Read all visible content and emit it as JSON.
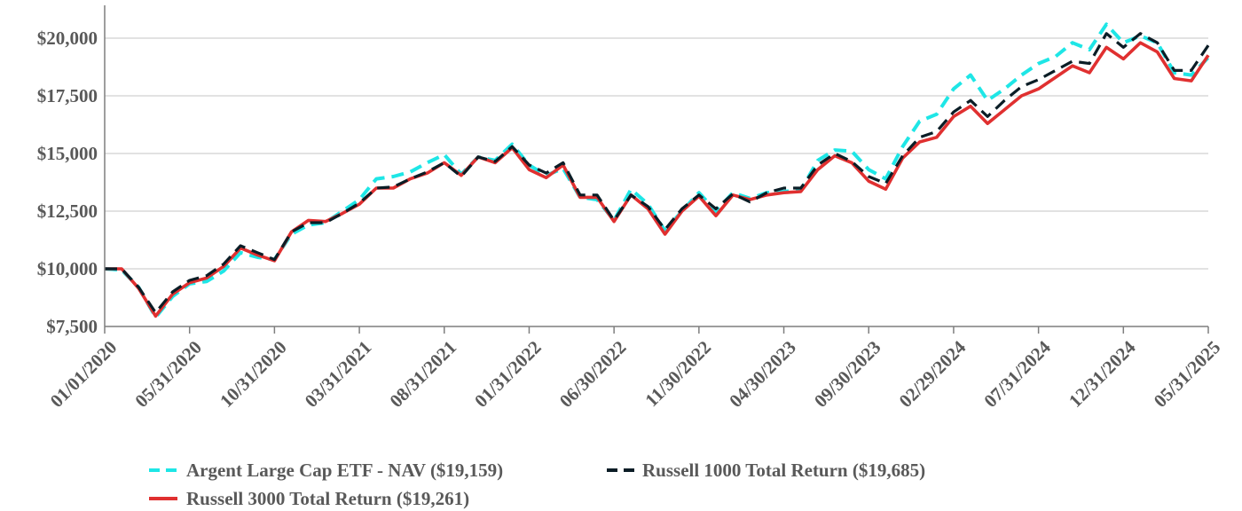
{
  "chart_data": {
    "type": "line",
    "title": "",
    "xlabel": "",
    "ylabel": "",
    "ylim": [
      7500,
      21500
    ],
    "y_ticks": [
      7500,
      10000,
      12500,
      15000,
      17500,
      20000
    ],
    "y_tick_labels": [
      "$7,500",
      "$10,000",
      "$12,500",
      "$15,000",
      "$17,500",
      "$20,000"
    ],
    "x_tick_labels": [
      "01/01/2020",
      "05/31/2020",
      "10/31/2020",
      "03/31/2021",
      "08/31/2021",
      "01/31/2022",
      "06/30/2022",
      "11/30/2022",
      "04/30/2023",
      "09/30/2023",
      "02/29/2024",
      "07/31/2024",
      "12/31/2024",
      "05/31/2025"
    ],
    "x_tick_positions": [
      0,
      5,
      10,
      15,
      20,
      25,
      30,
      35,
      40,
      45,
      50,
      55,
      60,
      65
    ],
    "grid": "horizontal",
    "legend_position": "bottom",
    "series": [
      {
        "name": "Argent Large Cap ETF - NAV ($19,159)",
        "color": "#1ee6e6",
        "dash": "dashed",
        "values": [
          10000,
          9950,
          9200,
          7900,
          8800,
          9350,
          9450,
          9900,
          10700,
          10500,
          10400,
          11500,
          11900,
          12000,
          12500,
          13000,
          13900,
          14000,
          14200,
          14600,
          14950,
          14100,
          14850,
          14700,
          15400,
          14500,
          14050,
          14350,
          13100,
          13000,
          12100,
          13450,
          12800,
          11650,
          12500,
          13300,
          12500,
          13300,
          13050,
          13300,
          13350,
          13400,
          14700,
          15150,
          15100,
          14300,
          13900,
          15300,
          16400,
          16700,
          17800,
          18400,
          17300,
          17800,
          18400,
          18900,
          19200,
          19800,
          19500,
          20600,
          19800,
          20100,
          19800,
          18500,
          18400,
          19159
        ]
      },
      {
        "name": "Russell 1000 Total Return ($19,685)",
        "color": "#0b1d26",
        "dash": "dashed",
        "values": [
          10000,
          10000,
          9200,
          8100,
          9000,
          9500,
          9700,
          10200,
          11000,
          10700,
          10400,
          11600,
          12000,
          12000,
          12400,
          12850,
          13500,
          13550,
          13900,
          14200,
          14600,
          14000,
          14850,
          14650,
          15300,
          14500,
          14150,
          14600,
          13200,
          13200,
          12100,
          13200,
          12700,
          11700,
          12600,
          13200,
          12600,
          13250,
          12900,
          13300,
          13500,
          13500,
          14500,
          15000,
          14650,
          14000,
          13700,
          14900,
          15700,
          15950,
          16800,
          17300,
          16600,
          17300,
          17900,
          18200,
          18600,
          19000,
          18900,
          20200,
          19600,
          20200,
          19800,
          18600,
          18600,
          19685
        ]
      },
      {
        "name": "Russell 3000 Total Return ($19,261)",
        "color": "#e03030",
        "dash": "solid",
        "values": [
          10000,
          10000,
          9150,
          7950,
          8900,
          9400,
          9600,
          10100,
          10900,
          10600,
          10350,
          11600,
          12100,
          12050,
          12400,
          12800,
          13500,
          13500,
          13900,
          14150,
          14600,
          14050,
          14850,
          14600,
          15250,
          14300,
          13950,
          14500,
          13100,
          13100,
          12050,
          13200,
          12600,
          11500,
          12500,
          13150,
          12300,
          13200,
          13000,
          13200,
          13300,
          13350,
          14300,
          14900,
          14600,
          13800,
          13450,
          14800,
          15500,
          15700,
          16600,
          17050,
          16300,
          16900,
          17500,
          17800,
          18300,
          18800,
          18500,
          19600,
          19100,
          19800,
          19400,
          18250,
          18150,
          19261
        ]
      }
    ]
  }
}
